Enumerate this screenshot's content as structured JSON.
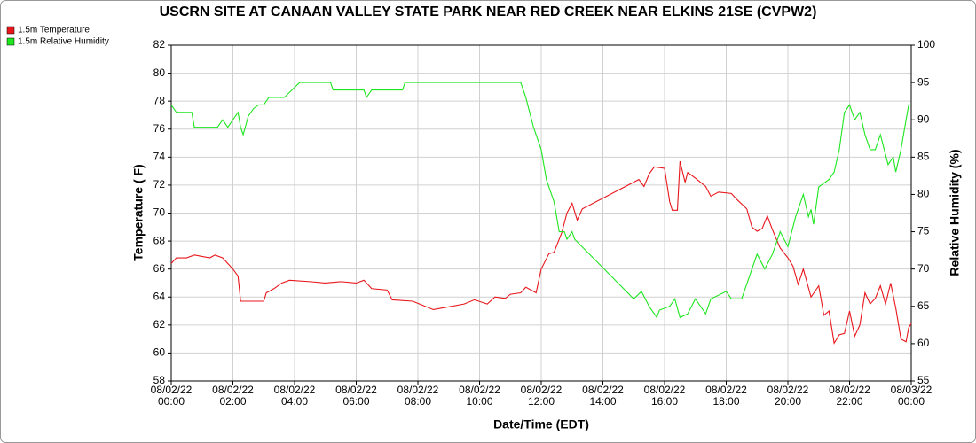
{
  "chart_data": {
    "type": "line",
    "title": "USCRN SITE AT CANAAN VALLEY STATE PARK NEAR RED CREEK NEAR ELKINS 21SE (CVPW2)",
    "xlabel": "Date/Time (EDT)",
    "ylabel": "Temperature ( F)",
    "y2label": "Relative Humidity (%)",
    "xlim": [
      "08/02/22 00:00",
      "08/03/22 00:00"
    ],
    "xticks": [
      "08/02/22 00:00",
      "08/02/22 02:00",
      "08/02/22 04:00",
      "08/02/22 06:00",
      "08/02/22 08:00",
      "08/02/22 10:00",
      "08/02/22 12:00",
      "08/02/22 14:00",
      "08/02/22 16:00",
      "08/02/22 18:00",
      "08/02/22 20:00",
      "08/02/22 22:00",
      "08/03/22 00:00"
    ],
    "ylim": [
      58,
      82
    ],
    "yticks": [
      58,
      60,
      62,
      64,
      66,
      68,
      70,
      72,
      74,
      76,
      78,
      80,
      82
    ],
    "y2lim": [
      55,
      100
    ],
    "y2ticks": [
      55,
      60,
      65,
      70,
      75,
      80,
      85,
      90,
      95,
      100
    ],
    "grid": true,
    "legend": "top-left",
    "series": [
      {
        "name": "1.5m Temperature",
        "color": "#e8161b",
        "x": [
          "08/02/22 00:00",
          "08/02/22 00:10",
          "08/02/22 00:30",
          "08/02/22 00:45",
          "08/02/22 01:00",
          "08/02/22 01:15",
          "08/02/22 01:25",
          "08/02/22 01:40",
          "08/02/22 01:50",
          "08/02/22 02:00",
          "08/02/22 02:10",
          "08/02/22 02:15",
          "08/02/22 03:00",
          "08/02/22 03:05",
          "08/02/22 03:20",
          "08/02/22 03:35",
          "08/02/22 03:50",
          "08/02/22 04:30",
          "08/02/22 05:00",
          "08/02/22 05:30",
          "08/02/22 06:00",
          "08/02/22 06:15",
          "08/02/22 06:30",
          "08/02/22 07:00",
          "08/02/22 07:10",
          "08/02/22 07:50",
          "08/02/22 08:10",
          "08/02/22 08:30",
          "08/02/22 09:00",
          "08/02/22 09:30",
          "08/02/22 09:50",
          "08/02/22 10:15",
          "08/02/22 10:30",
          "08/02/22 10:50",
          "08/02/22 11:00",
          "08/02/22 11:20",
          "08/02/22 11:30",
          "08/02/22 11:50",
          "08/02/22 12:00",
          "08/02/22 12:15",
          "08/02/22 12:25",
          "08/02/22 12:40",
          "08/02/22 12:50",
          "08/02/22 13:00",
          "08/02/22 13:10",
          "08/02/22 13:20",
          "08/02/22 15:10",
          "08/02/22 15:20",
          "08/02/22 15:30",
          "08/02/22 15:40",
          "08/02/22 16:00",
          "08/02/22 16:10",
          "08/02/22 16:15",
          "08/02/22 16:25",
          "08/02/22 16:30",
          "08/02/22 16:40",
          "08/02/22 16:45",
          "08/02/22 17:00",
          "08/02/22 17:20",
          "08/02/22 17:30",
          "08/02/22 17:45",
          "08/02/22 18:10",
          "08/02/22 18:20",
          "08/02/22 18:40",
          "08/02/22 18:50",
          "08/02/22 19:00",
          "08/02/22 19:10",
          "08/02/22 19:20",
          "08/02/22 19:30",
          "08/02/22 19:45",
          "08/02/22 20:00",
          "08/02/22 20:10",
          "08/02/22 20:20",
          "08/02/22 20:30",
          "08/02/22 20:45",
          "08/02/22 21:00",
          "08/02/22 21:10",
          "08/02/22 21:20",
          "08/02/22 21:30",
          "08/02/22 21:40",
          "08/02/22 21:50",
          "08/02/22 22:00",
          "08/02/22 22:10",
          "08/02/22 22:20",
          "08/02/22 22:30",
          "08/02/22 22:40",
          "08/02/22 22:50",
          "08/02/22 23:00",
          "08/02/22 23:10",
          "08/02/22 23:20",
          "08/02/22 23:30",
          "08/02/22 23:40",
          "08/02/22 23:50",
          "08/02/22 23:55",
          "08/03/22 00:00"
        ],
        "values": [
          66.4,
          66.8,
          66.8,
          67.0,
          66.9,
          66.8,
          67.0,
          66.8,
          66.4,
          66.0,
          65.5,
          63.7,
          63.7,
          64.3,
          64.6,
          65.0,
          65.2,
          65.1,
          65.0,
          65.1,
          65.0,
          65.2,
          64.6,
          64.5,
          63.8,
          63.7,
          63.4,
          63.1,
          63.3,
          63.5,
          63.8,
          63.5,
          64.0,
          63.9,
          64.2,
          64.3,
          64.7,
          64.3,
          66.0,
          67.1,
          67.2,
          68.6,
          70.0,
          70.7,
          69.5,
          70.3,
          72.4,
          71.9,
          72.8,
          73.3,
          73.2,
          70.8,
          70.2,
          70.2,
          73.7,
          72.2,
          72.9,
          72.5,
          71.9,
          71.2,
          71.5,
          71.4,
          71.0,
          70.3,
          69.0,
          68.7,
          68.9,
          69.8,
          68.8,
          67.5,
          66.8,
          66.2,
          64.9,
          66.0,
          64.0,
          64.8,
          62.7,
          63.0,
          60.7,
          61.3,
          61.4,
          63.0,
          61.2,
          62.0,
          64.3,
          63.5,
          63.9,
          64.8,
          63.5,
          65.0,
          63.2,
          61.0,
          60.8,
          61.8,
          62.1
        ]
      },
      {
        "name": "1.5m Relative Humidity",
        "color": "#1ee61e",
        "axis": "y2",
        "x": [
          "08/02/22 00:00",
          "08/02/22 00:10",
          "08/02/22 00:40",
          "08/02/22 00:45",
          "08/02/22 01:30",
          "08/02/22 01:40",
          "08/02/22 01:50",
          "08/02/22 02:00",
          "08/02/22 02:10",
          "08/02/22 02:15",
          "08/02/22 02:20",
          "08/02/22 02:30",
          "08/02/22 02:40",
          "08/02/22 02:50",
          "08/02/22 03:00",
          "08/02/22 03:10",
          "08/02/22 03:40",
          "08/02/22 03:55",
          "08/02/22 04:10",
          "08/02/22 05:10",
          "08/02/22 05:15",
          "08/02/22 06:15",
          "08/02/22 06:20",
          "08/02/22 06:30",
          "08/02/22 07:30",
          "08/02/22 07:35",
          "08/02/22 11:20",
          "08/02/22 11:30",
          "08/02/22 11:45",
          "08/02/22 12:00",
          "08/02/22 12:10",
          "08/02/22 12:25",
          "08/02/22 12:35",
          "08/02/22 12:45",
          "08/02/22 12:50",
          "08/02/22 13:00",
          "08/02/22 13:05",
          "08/02/22 15:00",
          "08/02/22 15:15",
          "08/02/22 15:30",
          "08/02/22 15:45",
          "08/02/22 15:50",
          "08/02/22 16:10",
          "08/02/22 16:20",
          "08/02/22 16:30",
          "08/02/22 16:45",
          "08/02/22 17:00",
          "08/02/22 17:20",
          "08/02/22 17:30",
          "08/02/22 18:00",
          "08/02/22 18:10",
          "08/02/22 18:30",
          "08/02/22 18:40",
          "08/02/22 19:00",
          "08/02/22 19:15",
          "08/02/22 19:30",
          "08/02/22 19:45",
          "08/02/22 20:00",
          "08/02/22 20:15",
          "08/02/22 20:30",
          "08/02/22 20:40",
          "08/02/22 20:45",
          "08/02/22 20:50",
          "08/02/22 21:00",
          "08/02/22 21:20",
          "08/02/22 21:30",
          "08/02/22 21:40",
          "08/02/22 21:50",
          "08/02/22 22:00",
          "08/02/22 22:10",
          "08/02/22 22:20",
          "08/02/22 22:30",
          "08/02/22 22:40",
          "08/02/22 22:50",
          "08/02/22 23:00",
          "08/02/22 23:15",
          "08/02/22 23:25",
          "08/02/22 23:30",
          "08/02/22 23:40",
          "08/02/22 23:55",
          "08/03/22 00:00"
        ],
        "values": [
          92,
          91,
          91,
          89,
          89,
          90,
          89,
          90,
          91,
          89,
          88,
          90.5,
          91.5,
          92,
          92,
          93,
          93,
          94,
          95,
          95,
          94,
          94,
          93,
          94,
          94,
          95,
          95,
          93,
          89,
          86,
          82,
          79,
          75,
          75,
          74,
          75,
          74,
          66,
          67,
          65,
          63.5,
          64.5,
          65,
          66,
          63.5,
          64,
          66,
          64,
          66,
          67,
          66,
          66,
          68,
          72,
          70,
          72,
          75,
          73,
          77,
          80,
          77,
          78,
          76,
          81,
          82,
          83,
          86,
          91,
          92,
          90,
          91,
          88,
          86,
          86,
          88,
          84,
          85,
          83,
          86,
          92,
          92
        ]
      }
    ]
  }
}
